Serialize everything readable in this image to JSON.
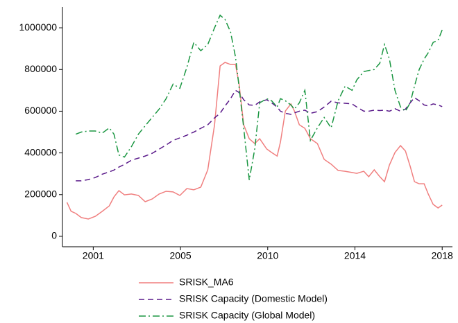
{
  "chart_data": {
    "type": "line",
    "x": [
      1999.72,
      1999.92,
      2000.15,
      2000.42,
      2000.76,
      2001.1,
      2001.44,
      2001.78,
      2002.01,
      2002.25,
      2002.52,
      2002.86,
      2003.2,
      2003.53,
      2003.87,
      2004.21,
      2004.55,
      2004.89,
      2005.22,
      2005.56,
      2005.9,
      2006.24,
      2006.58,
      2006.91,
      2007.18,
      2007.42,
      2007.69,
      2007.93,
      2008.1,
      2008.33,
      2008.6,
      2008.87,
      2009.11,
      2009.45,
      2009.69,
      2009.96,
      2010.12,
      2010.36,
      2010.63,
      2010.8,
      2011.04,
      2011.31,
      2011.58,
      2011.92,
      2012.25,
      2012.59,
      2012.93,
      2013.27,
      2013.61,
      2013.84,
      2014.18,
      2014.42,
      2014.69,
      2014.96,
      2015.19,
      2015.43,
      2015.7,
      2015.97,
      2016.21,
      2016.44,
      2016.65,
      2016.88,
      2017.12,
      2017.32,
      2017.56,
      2017.8,
      2018.0
    ],
    "series": [
      {
        "name": "SRISK_MA6",
        "color": "#f07f7f",
        "dash": "solid",
        "values": [
          163000,
          120000,
          110000,
          90000,
          83000,
          96000,
          120000,
          146000,
          189000,
          219000,
          199000,
          203000,
          196000,
          166000,
          179000,
          203000,
          216000,
          213000,
          196000,
          229000,
          223000,
          236000,
          319000,
          535000,
          817000,
          834000,
          824000,
          824000,
          734000,
          535000,
          468000,
          445000,
          468000,
          419000,
          402000,
          385000,
          452000,
          601000,
          635000,
          601000,
          535000,
          518000,
          468000,
          445000,
          369000,
          346000,
          316000,
          312000,
          306000,
          302000,
          312000,
          286000,
          319000,
          286000,
          262000,
          342000,
          402000,
          435000,
          409000,
          336000,
          262000,
          252000,
          252000,
          203000,
          153000,
          136000,
          150000
        ]
      },
      {
        "name": "SRISK Capacity (Domestic Model)",
        "color": "#5a1a8a",
        "dash": "dashed",
        "values": [
          null,
          null,
          266000,
          266000,
          272000,
          282000,
          298000,
          309000,
          318000,
          332000,
          345000,
          365000,
          375000,
          385000,
          398000,
          418000,
          438000,
          460000,
          472000,
          485000,
          500000,
          518000,
          535000,
          568000,
          590000,
          625000,
          660000,
          700000,
          690000,
          655000,
          630000,
          628000,
          645000,
          655000,
          640000,
          620000,
          600000,
          590000,
          585000,
          592000,
          600000,
          605000,
          590000,
          598000,
          620000,
          648000,
          640000,
          638000,
          635000,
          620000,
          600000,
          600000,
          605000,
          603000,
          605000,
          600000,
          612000,
          600000,
          610000,
          640000,
          665000,
          650000,
          630000,
          625000,
          635000,
          630000,
          622000
        ]
      },
      {
        "name": "SRISK Capacity (Global Model)",
        "color": "#1a9641",
        "dash": "dashdot",
        "values": [
          null,
          null,
          490000,
          500000,
          505000,
          505000,
          495000,
          520000,
          490000,
          390000,
          380000,
          430000,
          490000,
          530000,
          570000,
          610000,
          660000,
          730000,
          710000,
          810000,
          930000,
          890000,
          920000,
          1000000,
          1060000,
          1040000,
          980000,
          860000,
          720000,
          520000,
          270000,
          420000,
          640000,
          660000,
          650000,
          620000,
          660000,
          650000,
          630000,
          610000,
          640000,
          700000,
          460000,
          520000,
          570000,
          520000,
          650000,
          720000,
          700000,
          750000,
          790000,
          795000,
          800000,
          830000,
          920000,
          850000,
          700000,
          620000,
          600000,
          640000,
          720000,
          800000,
          850000,
          880000,
          930000,
          940000,
          990000
        ]
      }
    ],
    "xlim": [
      1999.5,
      2018.5
    ],
    "xticks": [
      {
        "value": 2001,
        "label": "2001"
      },
      {
        "value": 2005.25,
        "label": "2005"
      },
      {
        "value": 2009.5,
        "label": "2010"
      },
      {
        "value": 2013.75,
        "label": "2014"
      },
      {
        "value": 2018,
        "label": "2018"
      }
    ],
    "ylim": [
      -50000,
      1100000
    ],
    "yticks": [
      0,
      200000,
      400000,
      600000,
      800000,
      1000000
    ],
    "legend": "bottom"
  }
}
